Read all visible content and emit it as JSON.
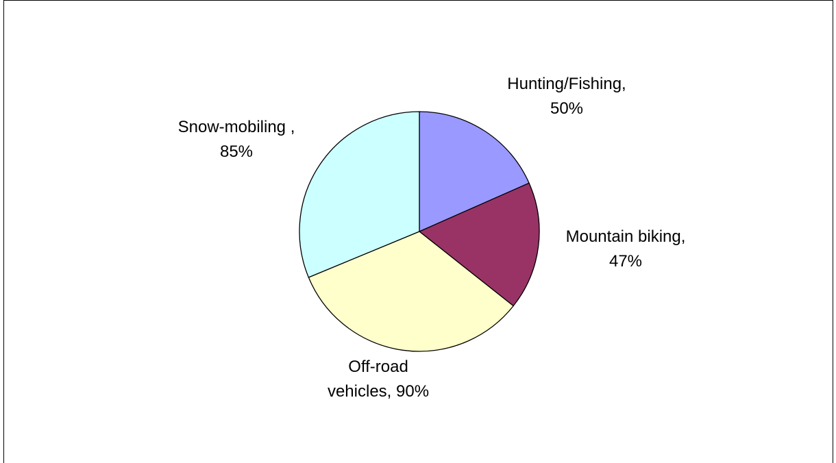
{
  "chart_data": {
    "type": "pie",
    "values": [
      50,
      47,
      90,
      85
    ],
    "value_labels": [
      [
        "Hunting/Fishing,",
        "50%"
      ],
      [
        "Mountain biking,",
        "47%"
      ],
      [
        "Off-road",
        "vehicles, 90%"
      ],
      [
        "Snow-mobiling ,",
        "85%"
      ]
    ],
    "colors": [
      "#9999ff",
      "#993366",
      "#ffffcc",
      "#ccffff"
    ]
  }
}
